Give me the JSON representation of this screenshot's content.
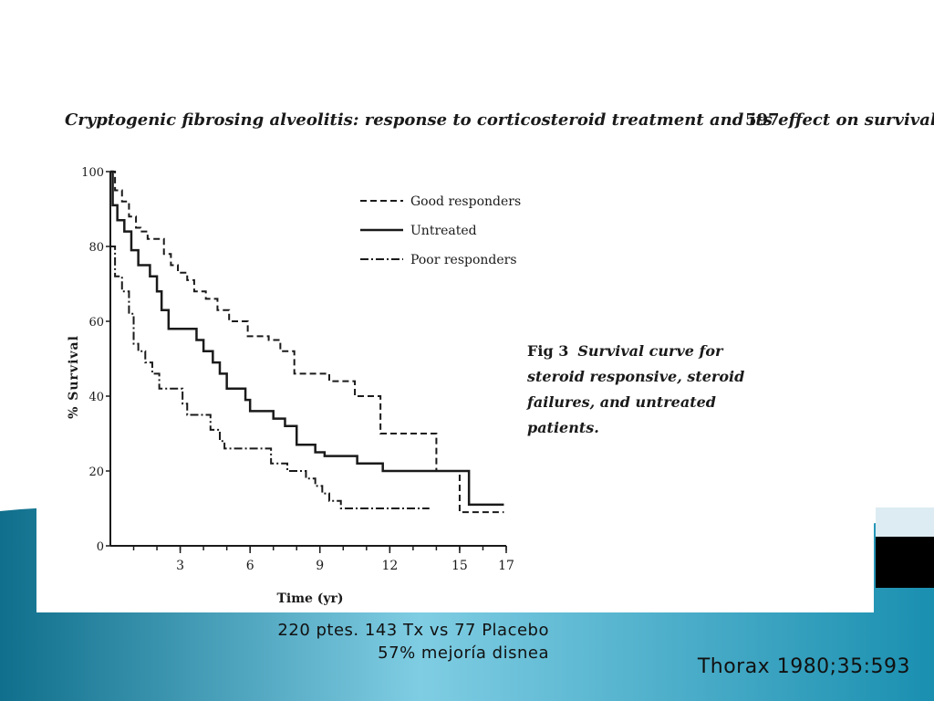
{
  "theme": {
    "teal_dark": "#0f6f8c",
    "teal_light": "#7fcde3",
    "black_band": "#000000",
    "ink": "#1a1a1a"
  },
  "paper": {
    "title": "Cryptogenic fibrosing alveolitis: response to corticosteroid treatment and its effect on survival",
    "page_number": "597",
    "figure_label": "Fig 3",
    "figure_caption": "Survival curve for steroid responsive, steroid failures, and untreated patients."
  },
  "slide": {
    "caption_line1": "220 ptes. 143 Tx vs 77 Placebo",
    "caption_line2": "57% mejoría disnea",
    "citation": "Thorax 1980;35:593"
  },
  "chart_data": {
    "type": "line",
    "step": true,
    "title": "",
    "xlabel": "Time (yr)",
    "ylabel": "% Survival",
    "xlim": [
      0,
      17
    ],
    "ylim": [
      0,
      100
    ],
    "x_ticks": [
      3,
      6,
      9,
      12,
      15,
      17
    ],
    "y_ticks": [
      0,
      20,
      40,
      60,
      80,
      100
    ],
    "legend_position": "top-right",
    "series": [
      {
        "name": "Good responders",
        "style": "dashed",
        "points": [
          [
            0,
            100
          ],
          [
            0.2,
            95
          ],
          [
            0.5,
            92
          ],
          [
            0.8,
            88
          ],
          [
            1.1,
            85
          ],
          [
            1.3,
            84
          ],
          [
            1.6,
            82
          ],
          [
            2.0,
            82
          ],
          [
            2.3,
            78
          ],
          [
            2.6,
            75
          ],
          [
            2.9,
            73
          ],
          [
            3.3,
            71
          ],
          [
            3.6,
            68
          ],
          [
            4.1,
            66
          ],
          [
            4.6,
            63
          ],
          [
            5.1,
            60
          ],
          [
            5.9,
            56
          ],
          [
            6.8,
            55
          ],
          [
            7.3,
            52
          ],
          [
            7.9,
            46
          ],
          [
            9.4,
            44
          ],
          [
            10.5,
            40
          ],
          [
            11.6,
            30
          ],
          [
            14.0,
            20
          ],
          [
            15.0,
            9
          ],
          [
            16.9,
            9
          ]
        ]
      },
      {
        "name": "Untreated",
        "style": "solid",
        "points": [
          [
            0,
            100
          ],
          [
            0.1,
            91
          ],
          [
            0.3,
            87
          ],
          [
            0.6,
            84
          ],
          [
            0.9,
            79
          ],
          [
            1.2,
            75
          ],
          [
            1.7,
            72
          ],
          [
            2.0,
            68
          ],
          [
            2.2,
            63
          ],
          [
            2.5,
            58
          ],
          [
            3.7,
            55
          ],
          [
            4.0,
            52
          ],
          [
            4.4,
            49
          ],
          [
            4.7,
            46
          ],
          [
            5.0,
            42
          ],
          [
            5.8,
            39
          ],
          [
            6.0,
            36
          ],
          [
            7.0,
            34
          ],
          [
            7.5,
            32
          ],
          [
            8.0,
            27
          ],
          [
            8.8,
            25
          ],
          [
            9.2,
            24
          ],
          [
            10.6,
            22
          ],
          [
            11.7,
            20
          ],
          [
            15.4,
            11
          ],
          [
            16.9,
            11
          ]
        ]
      },
      {
        "name": "Poor responders",
        "style": "dashdot",
        "points": [
          [
            0,
            80
          ],
          [
            0.2,
            72
          ],
          [
            0.5,
            68
          ],
          [
            0.8,
            62
          ],
          [
            1.0,
            54
          ],
          [
            1.2,
            52
          ],
          [
            1.5,
            49
          ],
          [
            1.8,
            46
          ],
          [
            2.1,
            42
          ],
          [
            3.1,
            38
          ],
          [
            3.3,
            35
          ],
          [
            4.3,
            31
          ],
          [
            4.7,
            28
          ],
          [
            4.9,
            26
          ],
          [
            6.9,
            22
          ],
          [
            7.6,
            20
          ],
          [
            8.4,
            18
          ],
          [
            8.8,
            16
          ],
          [
            9.1,
            14
          ],
          [
            9.4,
            12
          ],
          [
            9.9,
            10
          ],
          [
            13.7,
            10
          ]
        ]
      }
    ]
  }
}
